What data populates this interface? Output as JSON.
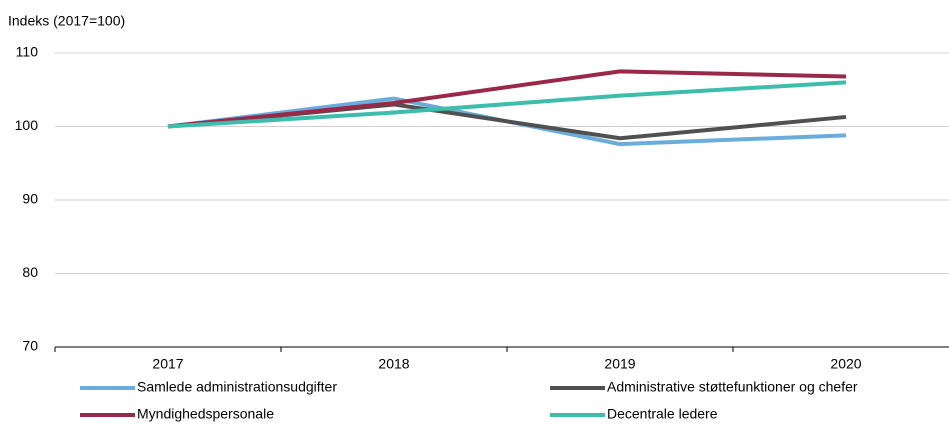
{
  "chart_data": {
    "type": "line",
    "y_label": "Indeks (2017=100)",
    "categories": [
      "2017",
      "2018",
      "2019",
      "2020"
    ],
    "series": [
      {
        "name": "Samlede administrationsudgifter",
        "color": "#6aaddb",
        "values": [
          100,
          103.8,
          97.6,
          98.8
        ]
      },
      {
        "name": "Administrative støttefunktioner og chefer",
        "color": "#505050",
        "values": [
          100,
          103,
          98.4,
          101.3
        ]
      },
      {
        "name": "Myndighedspersonale",
        "color": "#9a2848",
        "values": [
          100,
          103.2,
          107.5,
          106.8
        ]
      },
      {
        "name": "Decentrale ledere",
        "color": "#3dbdab",
        "values": [
          100,
          101.9,
          104.2,
          106
        ]
      }
    ],
    "ylim": [
      70,
      110
    ],
    "yticks": [
      70,
      80,
      90,
      100,
      110
    ],
    "grid": true
  }
}
